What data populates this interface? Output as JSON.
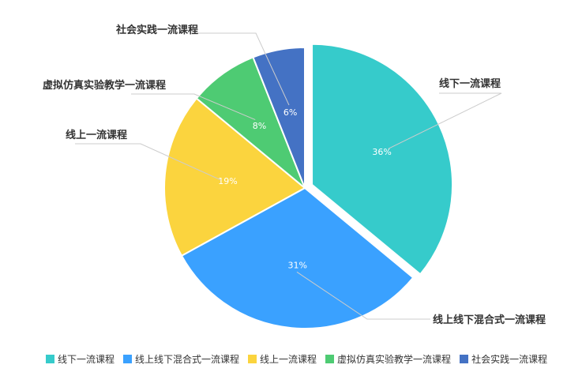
{
  "chart_data": {
    "type": "pie",
    "title": "",
    "slices": [
      {
        "label": "线下一流课程",
        "value": 36,
        "percent_label": "36%",
        "color": "#36CBCB"
      },
      {
        "label": "线上线下混合式一流课程",
        "value": 31,
        "percent_label": "31%",
        "color": "#3AA1FF"
      },
      {
        "label": "线上一流课程",
        "value": 19,
        "percent_label": "19%",
        "color": "#FBD43E"
      },
      {
        "label": "虚拟仿真实验教学一流课程",
        "value": 8,
        "percent_label": "8%",
        "color": "#4ECB73"
      },
      {
        "label": "社会实践一流课程",
        "value": 6,
        "percent_label": "6%",
        "color": "#4472C4"
      }
    ],
    "legend_position": "bottom"
  }
}
